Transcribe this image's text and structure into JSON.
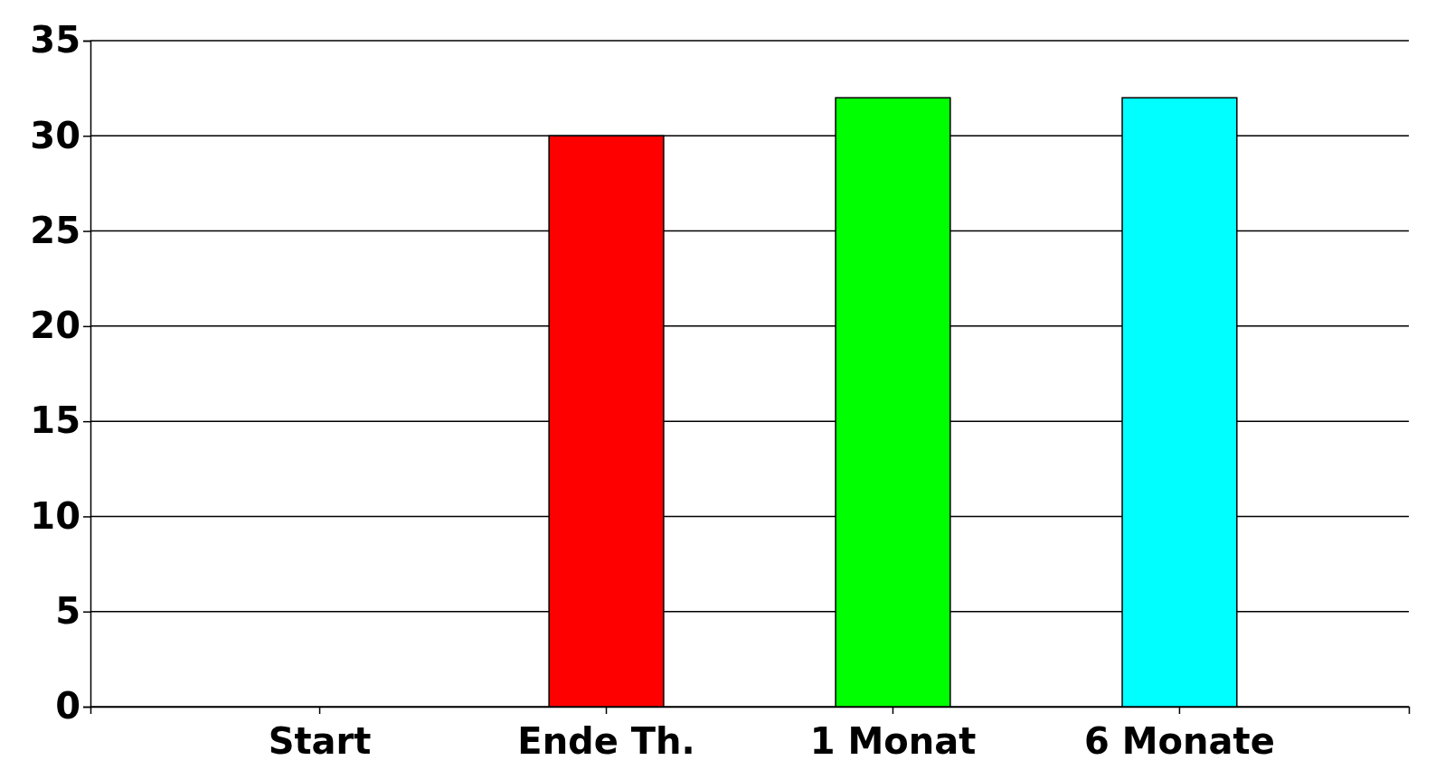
{
  "chart_data": {
    "type": "bar",
    "categories": [
      "Start",
      "Ende Th.",
      "1 Monat",
      "6 Monate"
    ],
    "values": [
      0,
      30,
      32,
      32
    ],
    "colors": [
      "#0000c0",
      "#ff0000",
      "#00ff00",
      "#00ffff"
    ],
    "ylim": [
      0,
      35
    ],
    "yticks": [
      0,
      5,
      10,
      15,
      20,
      25,
      30,
      35
    ],
    "grid": "y"
  }
}
